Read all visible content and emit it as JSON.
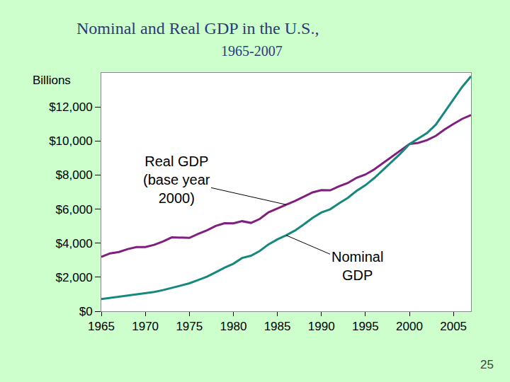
{
  "chart_data": {
    "type": "line",
    "title": "Nominal and Real GDP in the U.S.,",
    "subtitle": "1965-2007",
    "y_label": "Billions",
    "x": [
      1965,
      1966,
      1967,
      1968,
      1969,
      1970,
      1971,
      1972,
      1973,
      1974,
      1975,
      1976,
      1977,
      1978,
      1979,
      1980,
      1981,
      1982,
      1983,
      1984,
      1985,
      1986,
      1987,
      1988,
      1989,
      1990,
      1991,
      1992,
      1993,
      1994,
      1995,
      1996,
      1997,
      1998,
      1999,
      2000,
      2001,
      2002,
      2003,
      2004,
      2005,
      2006,
      2007
    ],
    "series": [
      {
        "name": "Real GDP",
        "color": "#7f1f7f",
        "values": [
          3190,
          3400,
          3480,
          3650,
          3770,
          3770,
          3900,
          4100,
          4340,
          4320,
          4310,
          4540,
          4750,
          5010,
          5170,
          5160,
          5290,
          5190,
          5420,
          5810,
          6050,
          6260,
          6480,
          6740,
          6980,
          7110,
          7100,
          7340,
          7530,
          7840,
          8030,
          8330,
          8700,
          9070,
          9470,
          9820,
          9890,
          10050,
          10300,
          10680,
          11000,
          11300,
          11520
        ]
      },
      {
        "name": "Nominal GDP",
        "color": "#16897f",
        "values": [
          720,
          790,
          830,
          910,
          985,
          1040,
          1130,
          1240,
          1380,
          1500,
          1640,
          1830,
          2030,
          2290,
          2560,
          2790,
          3130,
          3260,
          3540,
          3930,
          4220,
          4460,
          4740,
          5100,
          5480,
          5800,
          5990,
          6340,
          6660,
          7070,
          7400,
          7820,
          8300,
          8750,
          9270,
          9820,
          10130,
          10470,
          10960,
          11690,
          12460,
          13180,
          13800
        ]
      }
    ],
    "xlim": [
      1965,
      2007
    ],
    "xticks": [
      1965,
      1970,
      1975,
      1980,
      1985,
      1990,
      1995,
      2000,
      2005
    ],
    "ylim": [
      0,
      14000
    ],
    "yticks": [
      {
        "value": 0,
        "label": "$0"
      },
      {
        "value": 2000,
        "label": "$2,000"
      },
      {
        "value": 4000,
        "label": "$4,000"
      },
      {
        "value": 6000,
        "label": "$6,000"
      },
      {
        "value": 8000,
        "label": "$8,000"
      },
      {
        "value": 10000,
        "label": "$10,000"
      },
      {
        "value": 12000,
        "label": "$12,000"
      }
    ],
    "grid": false,
    "annotations": [
      {
        "text": "Real GDP\n(base year\n2000)",
        "series": "Real GDP"
      },
      {
        "text": "Nominal\nGDP",
        "series": "Nominal GDP"
      }
    ],
    "page_number": 25
  }
}
